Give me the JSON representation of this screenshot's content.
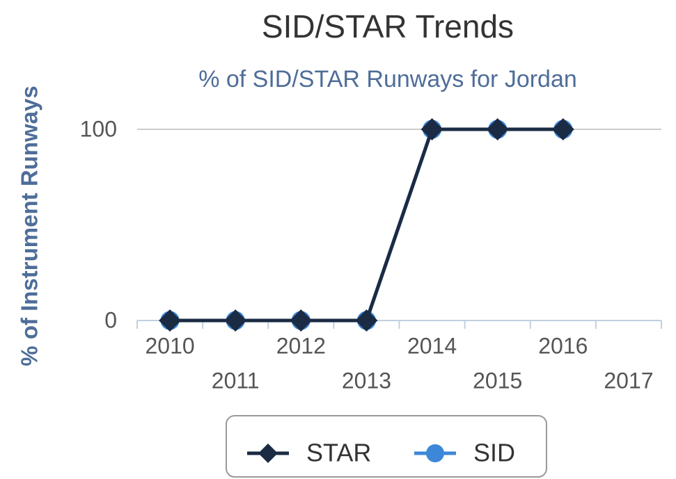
{
  "chart_data": {
    "type": "line",
    "title": "SID/STAR Trends",
    "subtitle": "% of SID/STAR Runways for Jordan",
    "y_label": "% of Instrument Runways",
    "categories": [
      "2010",
      "2011",
      "2012",
      "2013",
      "2014",
      "2015",
      "2016",
      "2017"
    ],
    "series": [
      {
        "name": "STAR",
        "color": "#1b2b44",
        "marker": "diamond",
        "values": [
          0,
          0,
          0,
          0,
          100,
          100,
          100,
          null
        ]
      },
      {
        "name": "SID",
        "color": "#3c87d8",
        "marker": "circle",
        "values": [
          0,
          0,
          0,
          0,
          100,
          100,
          100,
          null
        ]
      }
    ],
    "ylim": [
      0,
      100
    ],
    "yticks": [
      0,
      100
    ],
    "grid": true,
    "legend": "bottom"
  }
}
